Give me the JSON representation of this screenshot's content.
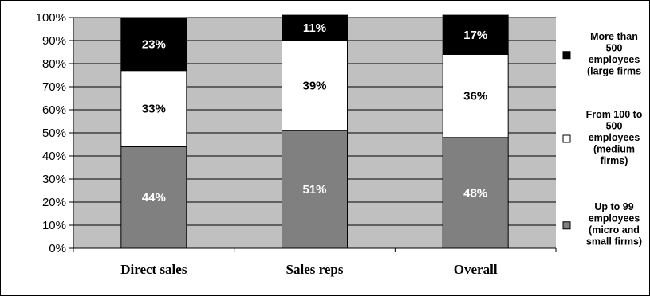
{
  "chart_data": {
    "type": "bar",
    "stacked": true,
    "categories": [
      "Direct sales",
      "Sales reps",
      "Overall"
    ],
    "series": [
      {
        "name": "Up to 99 employees (micro and small firms)",
        "values": [
          44,
          51,
          48
        ],
        "labels": [
          "44%",
          "51%",
          "48%"
        ],
        "color": "#808080",
        "label_color": "#ffffff"
      },
      {
        "name": "From 100 to 500 employees (medium firms)",
        "values": [
          33,
          39,
          36
        ],
        "labels": [
          "33%",
          "39%",
          "36%"
        ],
        "color": "#ffffff",
        "label_color": "#000000"
      },
      {
        "name": "More than 500 employees (large firms)",
        "values": [
          23,
          11,
          17
        ],
        "labels": [
          "23%",
          "11%",
          "17%"
        ],
        "color": "#000000",
        "label_color": "#ffffff"
      }
    ],
    "yticks": [
      "0%",
      "10%",
      "20%",
      "30%",
      "40%",
      "50%",
      "60%",
      "70%",
      "80%",
      "90%",
      "100%"
    ],
    "ylim": [
      0,
      100
    ],
    "grid": true,
    "plot_background": "#c0c0c0",
    "legend_position": "right",
    "legend": [
      {
        "lines": [
          "More than",
          "500",
          "employees",
          "(large firms"
        ],
        "color": "#000000"
      },
      {
        "lines": [
          "From 100 to",
          "500",
          "employees",
          "(medium",
          "firms)"
        ],
        "color": "#ffffff"
      },
      {
        "lines": [
          "Up to 99",
          "employees",
          "(micro and",
          "small firms)"
        ],
        "color": "#808080"
      }
    ]
  }
}
